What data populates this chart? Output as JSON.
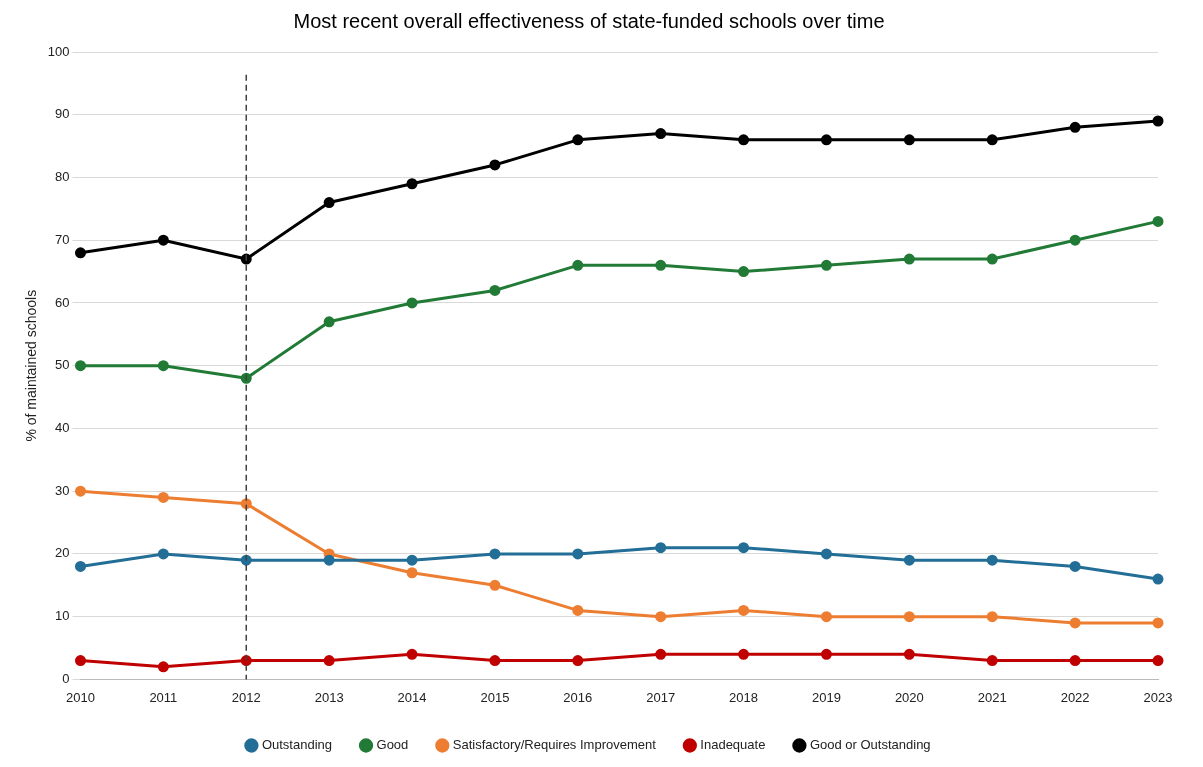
{
  "chart_data": {
    "type": "line",
    "title": "Most recent overall effectiveness of state-funded schools over time",
    "ylabel": "% of maintained schools",
    "categories": [
      "2010",
      "2011",
      "2012",
      "2013",
      "2014",
      "2015",
      "2016",
      "2017",
      "2018",
      "2019",
      "2020",
      "2021",
      "2022",
      "2023"
    ],
    "series": [
      {
        "name": "Outstanding",
        "color": "#236e96",
        "values": [
          18,
          20,
          19,
          19,
          19,
          20,
          20,
          21,
          21,
          20,
          19,
          19,
          18,
          16
        ]
      },
      {
        "name": "Good",
        "color": "#217a35",
        "values": [
          50,
          50,
          48,
          57,
          60,
          62,
          66,
          66,
          65,
          66,
          67,
          67,
          70,
          73
        ]
      },
      {
        "name": "Satisfactory/Requires Improvement",
        "color": "#ed7d31",
        "values": [
          30,
          29,
          28,
          20,
          17,
          15,
          11,
          10,
          11,
          10,
          10,
          10,
          9,
          9
        ]
      },
      {
        "name": "Inadequate",
        "color": "#c00000",
        "values": [
          3,
          2,
          3,
          3,
          4,
          3,
          3,
          4,
          4,
          4,
          4,
          3,
          3,
          3
        ]
      },
      {
        "name": "Good or Outstanding",
        "color": "#000000",
        "values": [
          68,
          70,
          67,
          76,
          79,
          82,
          86,
          87,
          86,
          86,
          86,
          86,
          88,
          89
        ]
      }
    ],
    "ylim": [
      0,
      100
    ],
    "yticks": [
      0,
      10,
      20,
      30,
      40,
      50,
      60,
      70,
      80,
      90,
      100
    ],
    "ref_lines": [
      {
        "axis": "x",
        "value": "2012",
        "color": "#404040",
        "line_style": "dashed"
      }
    ],
    "grid": "y",
    "legend": "bottom",
    "marker": "circle",
    "line_style": "solid"
  }
}
